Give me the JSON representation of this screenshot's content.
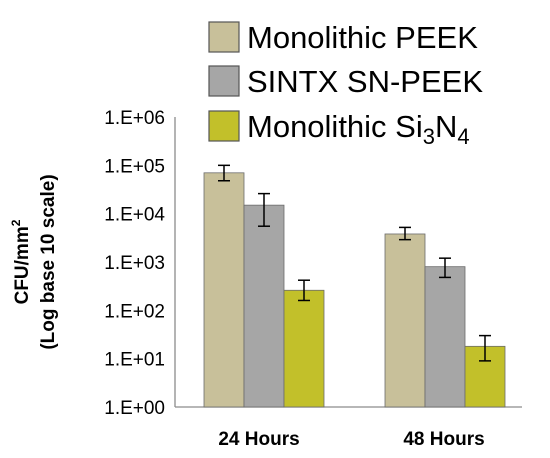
{
  "chart_data": {
    "type": "bar",
    "scale": "log",
    "ylim": [
      1,
      1000000
    ],
    "yticks": [
      "1.E+00",
      "1.E+01",
      "1.E+02",
      "1.E+03",
      "1.E+04",
      "1.E+05",
      "1.E+06"
    ],
    "ylabel_line1": "CFU/mm",
    "ylabel_sup": "2",
    "ylabel_line2": "(Log base 10 scale)",
    "xlabel": "",
    "categories": [
      "24 Hours",
      "48 Hours"
    ],
    "legend_position": "top-right",
    "grid": false,
    "series": [
      {
        "name": "Monolithic PEEK",
        "color": "#c8c09a",
        "values": [
          70000,
          3800
        ],
        "err_low": [
          48000,
          2900
        ],
        "err_high": [
          100000,
          5200
        ]
      },
      {
        "name": "SINTX SN-PEEK",
        "color": "#a6a6a6",
        "values": [
          15000,
          800
        ],
        "err_low": [
          5500,
          480
        ],
        "err_high": [
          26000,
          1200
        ]
      },
      {
        "name_parts": [
          "Monolithic Si",
          "3",
          "N",
          "4"
        ],
        "color": "#c2c02a",
        "values": [
          260,
          18
        ],
        "err_low": [
          160,
          9
        ],
        "err_high": [
          420,
          30
        ]
      }
    ]
  }
}
